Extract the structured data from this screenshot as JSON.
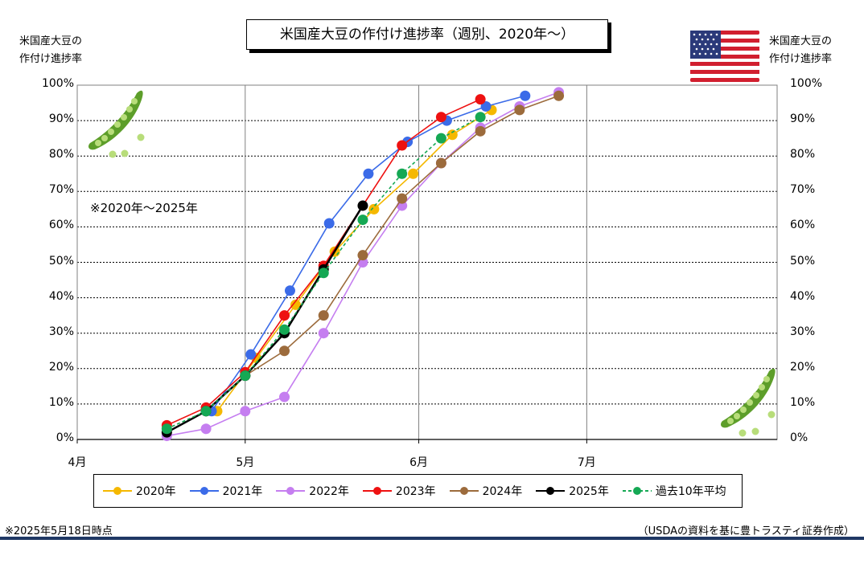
{
  "title": "米国産大豆の作付け進捗率（週別、2020年～）",
  "left_axis_title": [
    "米国産大豆の",
    "作付け進捗率"
  ],
  "right_axis_title": [
    "米国産大豆の",
    "作付け進捗率"
  ],
  "range_note": "※2020年～2025年",
  "footnote_left": "※2025年5月18日時点",
  "footnote_right": "（USDAの資料を基に豊トラスティ証券作成）",
  "icons": {
    "flag": "us-flag-icon",
    "pea_top": "soybean-pod-icon",
    "pea_bottom": "soybean-pod-icon"
  },
  "chart_data": {
    "type": "line",
    "x_tick_labels": [
      "4月",
      "5月",
      "6月",
      "7月"
    ],
    "x_ticks": [
      "04-01",
      "05-01",
      "06-01",
      "07-01"
    ],
    "xlim": [
      "04-01",
      "08-04"
    ],
    "ylim": [
      0,
      100
    ],
    "y_tick_labels": [
      "0%",
      "10%",
      "20%",
      "30%",
      "40%",
      "50%",
      "60%",
      "70%",
      "80%",
      "90%",
      "100%"
    ],
    "grid": true,
    "legend_position": "bottom",
    "series": [
      {
        "name": "2020年",
        "color": "#f5b800",
        "dashed": false,
        "x": [
          "04-26",
          "05-03",
          "05-10",
          "05-17",
          "05-24",
          "05-31",
          "06-07",
          "06-14"
        ],
        "values": [
          8,
          23,
          38,
          53,
          65,
          75,
          86,
          93
        ]
      },
      {
        "name": "2021年",
        "color": "#3b6be8",
        "dashed": false,
        "x": [
          "04-25",
          "05-02",
          "05-09",
          "05-16",
          "05-23",
          "05-30",
          "06-06",
          "06-13",
          "06-20"
        ],
        "values": [
          8,
          24,
          42,
          61,
          75,
          84,
          90,
          94,
          97
        ]
      },
      {
        "name": "2022年",
        "color": "#c57ef0",
        "dashed": false,
        "x": [
          "04-17",
          "04-24",
          "05-01",
          "05-08",
          "05-15",
          "05-22",
          "05-29",
          "06-05",
          "06-12",
          "06-19",
          "06-26"
        ],
        "values": [
          1,
          3,
          8,
          12,
          30,
          50,
          66,
          78,
          88,
          94,
          98
        ]
      },
      {
        "name": "2023年",
        "color": "#ee1111",
        "dashed": false,
        "x": [
          "04-17",
          "04-24",
          "05-01",
          "05-08",
          "05-15",
          "05-29",
          "06-05",
          "06-12"
        ],
        "values": [
          4,
          9,
          19,
          35,
          49,
          83,
          91,
          96
        ]
      },
      {
        "name": "2024年",
        "color": "#9c6b3c",
        "dashed": false,
        "x": [
          "04-24",
          "05-01",
          "05-08",
          "05-15",
          "05-22",
          "05-29",
          "06-05",
          "06-12",
          "06-19",
          "06-26"
        ],
        "values": [
          8,
          18,
          25,
          35,
          52,
          68,
          78,
          87,
          93,
          97
        ]
      },
      {
        "name": "2025年",
        "color": "#000000",
        "dashed": false,
        "x": [
          "04-17",
          "04-24",
          "05-01",
          "05-08",
          "05-15",
          "05-22"
        ],
        "values": [
          2,
          8,
          18,
          30,
          48,
          66
        ]
      },
      {
        "name": "過去10年平均",
        "color": "#15a854",
        "dashed": true,
        "x": [
          "04-17",
          "04-24",
          "05-01",
          "05-08",
          "05-15",
          "05-22",
          "05-29",
          "06-05",
          "06-12"
        ],
        "values": [
          3,
          8,
          18,
          31,
          47,
          62,
          75,
          85,
          91
        ]
      }
    ]
  }
}
